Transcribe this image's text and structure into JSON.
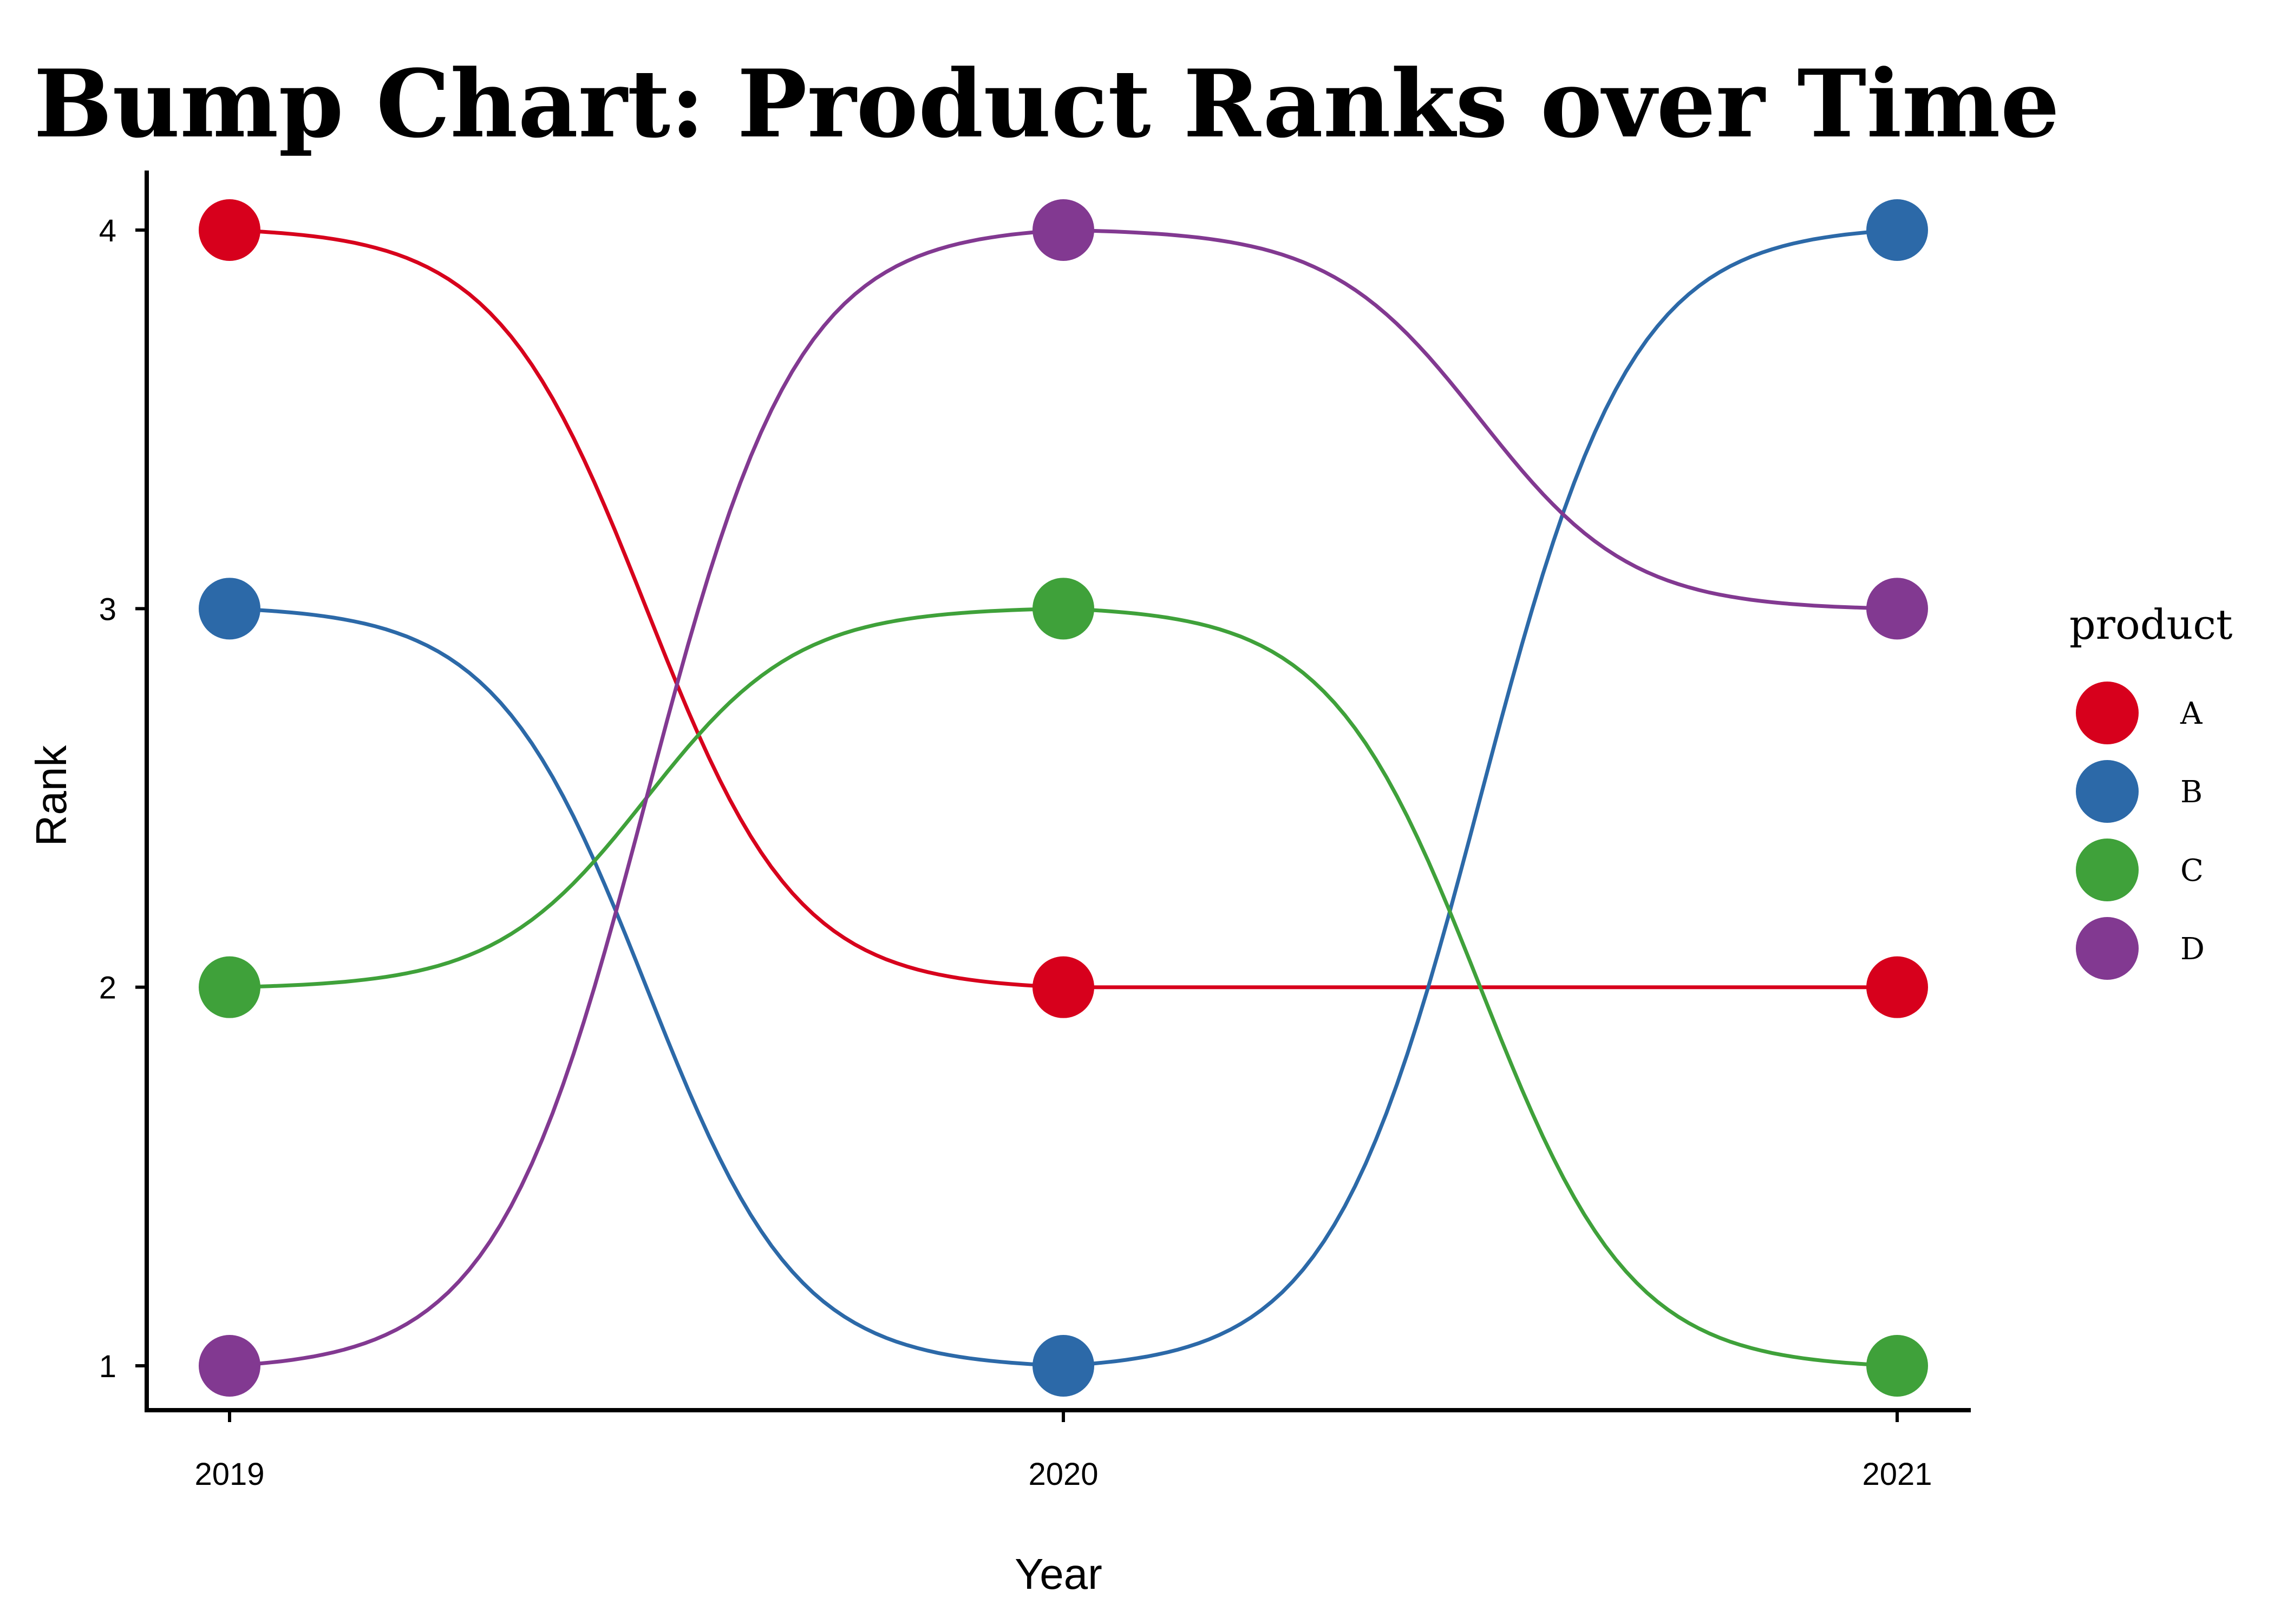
{
  "chart_data": {
    "type": "line",
    "title": "Bump Chart: Product Ranks over Time",
    "xlabel": "Year",
    "ylabel": "Rank",
    "x": [
      "2019",
      "2020",
      "2021"
    ],
    "yticks": [
      "1",
      "2",
      "3",
      "4"
    ],
    "ylim": [
      0.85,
      4.15
    ],
    "series": [
      {
        "name": "A",
        "color": "#D7001C",
        "values": [
          4,
          2,
          2
        ]
      },
      {
        "name": "B",
        "color": "#2C69A8",
        "values": [
          3,
          1,
          4
        ]
      },
      {
        "name": "C",
        "color": "#3FA13A",
        "values": [
          2,
          3,
          1
        ]
      },
      {
        "name": "D",
        "color": "#823991",
        "values": [
          1,
          4,
          3
        ]
      }
    ],
    "legend": {
      "title": "product",
      "position": "right"
    },
    "grid": false
  }
}
